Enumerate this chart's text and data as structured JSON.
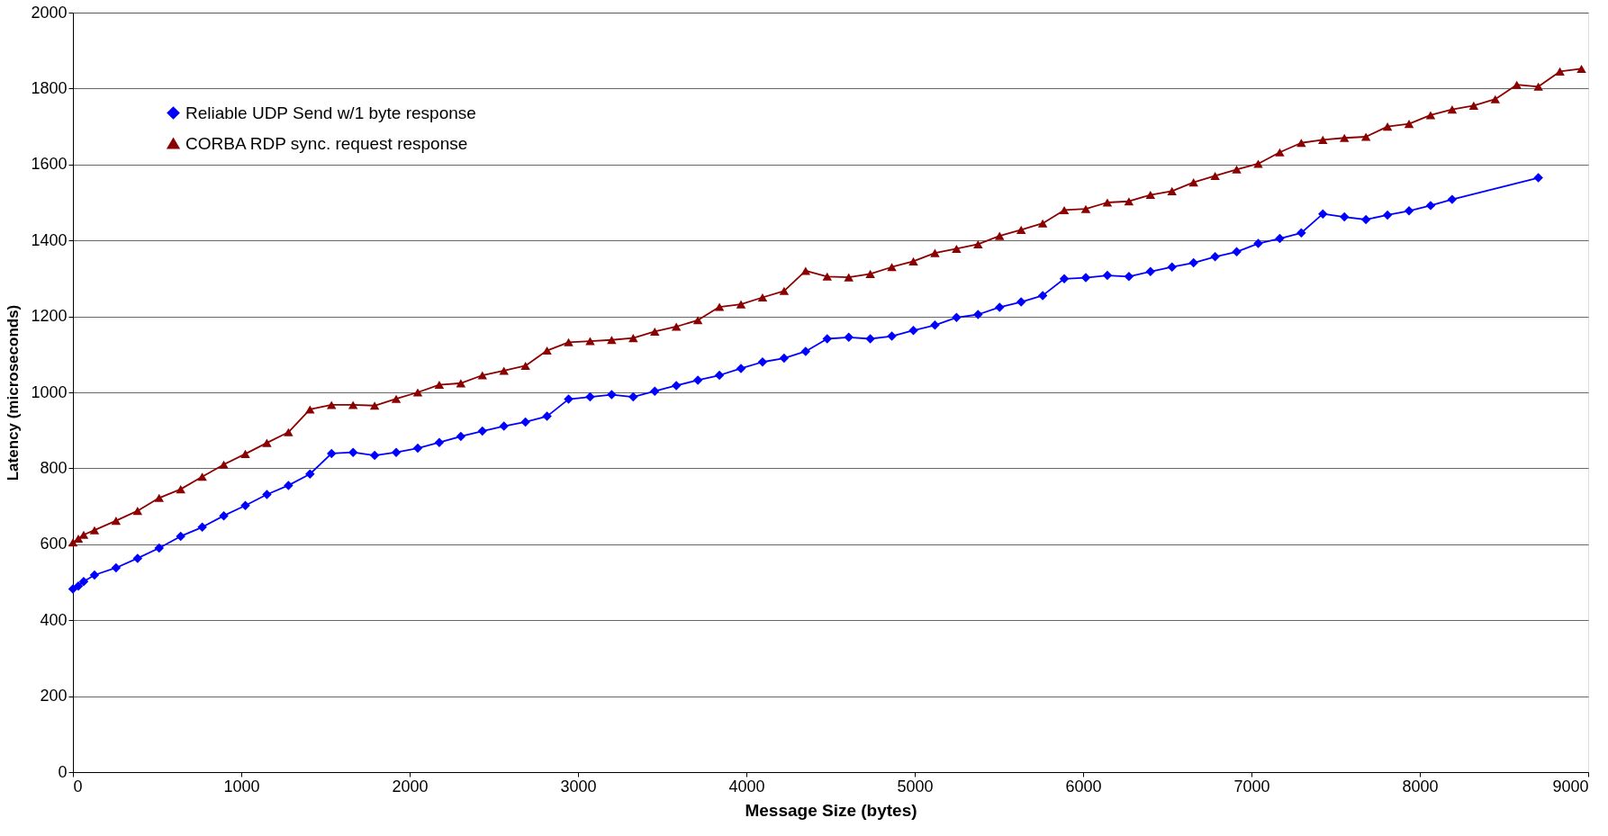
{
  "chart_data": {
    "type": "line",
    "xlabel": "Message Size (bytes)",
    "ylabel": "Latency (microseconds)",
    "xlim": [
      0,
      9000
    ],
    "xticks": [
      0,
      1000,
      2000,
      3000,
      4000,
      5000,
      6000,
      7000,
      8000,
      9000
    ],
    "ylim": [
      0,
      2000
    ],
    "yticks": [
      0,
      200,
      400,
      600,
      800,
      1000,
      1200,
      1400,
      1600,
      1800,
      2000
    ],
    "grid": "y",
    "legend": "top left",
    "line_style": "solid",
    "series": [
      {
        "name": "Reliable UDP Send w/1 byte response",
        "color": "#0000ff",
        "marker": "diamond",
        "x": [
          0,
          32,
          64,
          128,
          256,
          384,
          512,
          640,
          768,
          896,
          1024,
          1152,
          1280,
          1408,
          1536,
          1664,
          1792,
          1920,
          2048,
          2176,
          2304,
          2432,
          2560,
          2688,
          2816,
          2944,
          3072,
          3200,
          3328,
          3456,
          3584,
          3712,
          3840,
          3968,
          4096,
          4224,
          4352,
          4480,
          4608,
          4736,
          4864,
          4992,
          5120,
          5248,
          5376,
          5504,
          5632,
          5760,
          5888,
          6016,
          6144,
          6272,
          6400,
          6528,
          6656,
          6784,
          6912,
          7040,
          7168,
          7296,
          7424,
          7552,
          7680,
          7808,
          7936,
          8064,
          8192,
          8704
        ],
        "values": [
          482,
          490,
          502,
          519,
          538,
          563,
          590,
          621,
          645,
          675,
          702,
          731,
          755,
          785,
          839,
          842,
          834,
          842,
          853,
          868,
          884,
          898,
          911,
          922,
          937,
          982,
          988,
          994,
          988,
          1003,
          1018,
          1032,
          1045,
          1063,
          1080,
          1090,
          1108,
          1141,
          1145,
          1141,
          1148,
          1163,
          1177,
          1197,
          1205,
          1224,
          1238,
          1255,
          1299,
          1302,
          1308,
          1305,
          1318,
          1330,
          1341,
          1357,
          1370,
          1392,
          1405,
          1420,
          1470,
          1462,
          1455,
          1467,
          1478,
          1492,
          1508,
          1565
        ]
      },
      {
        "name": "CORBA RDP sync. request response",
        "color": "#8b0000",
        "marker": "triangle",
        "x": [
          0,
          32,
          64,
          128,
          256,
          384,
          512,
          640,
          768,
          896,
          1024,
          1152,
          1280,
          1408,
          1536,
          1664,
          1792,
          1920,
          2048,
          2176,
          2304,
          2432,
          2560,
          2688,
          2816,
          2944,
          3072,
          3200,
          3328,
          3456,
          3584,
          3712,
          3840,
          3968,
          4096,
          4224,
          4352,
          4480,
          4608,
          4736,
          4864,
          4992,
          5120,
          5248,
          5376,
          5504,
          5632,
          5760,
          5888,
          6016,
          6144,
          6272,
          6400,
          6528,
          6656,
          6784,
          6912,
          7040,
          7168,
          7296,
          7424,
          7552,
          7680,
          7808,
          7936,
          8064,
          8192,
          8320,
          8448,
          8576,
          8704,
          8832,
          8960
        ],
        "values": [
          605,
          615,
          625,
          637,
          662,
          688,
          722,
          745,
          778,
          810,
          838,
          867,
          895,
          955,
          967,
          967,
          965,
          983,
          1000,
          1020,
          1024,
          1045,
          1057,
          1070,
          1110,
          1132,
          1135,
          1138,
          1143,
          1160,
          1173,
          1190,
          1225,
          1232,
          1250,
          1267,
          1320,
          1305,
          1303,
          1312,
          1330,
          1345,
          1367,
          1378,
          1390,
          1412,
          1428,
          1445,
          1480,
          1483,
          1500,
          1503,
          1520,
          1530,
          1553,
          1570,
          1587,
          1602,
          1632,
          1657,
          1665,
          1670,
          1673,
          1700,
          1707,
          1730,
          1745,
          1755,
          1772,
          1810,
          1805,
          1845,
          1852
        ]
      }
    ]
  }
}
